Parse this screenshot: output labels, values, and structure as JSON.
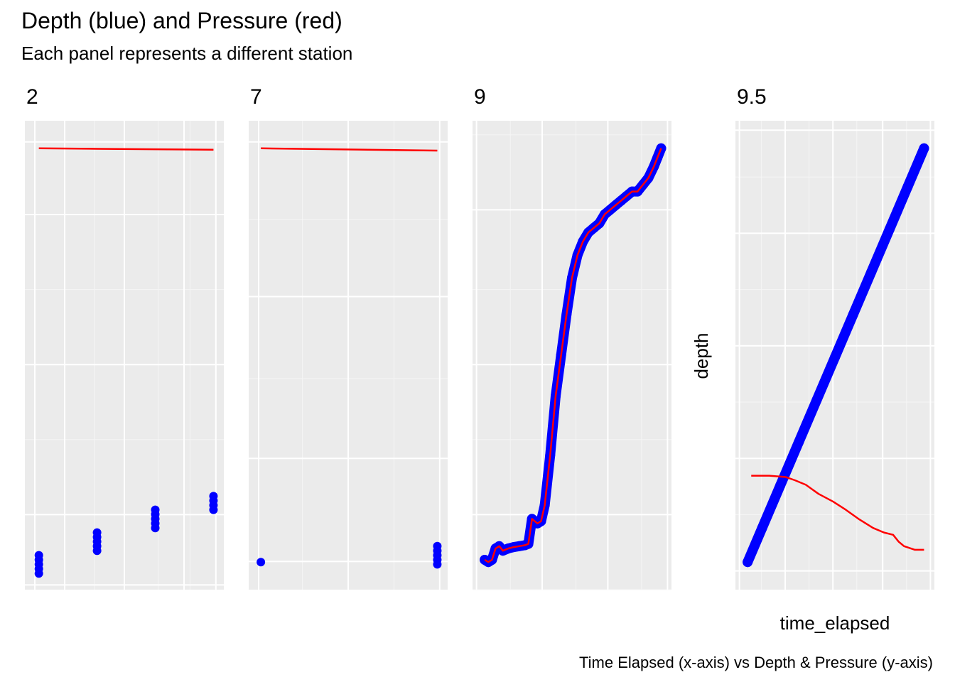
{
  "chart_data": {
    "type": "line",
    "title": "Depth (blue) and Pressure (red)",
    "subtitle": "Each panel represents a different station",
    "caption": "Time Elapsed (x-axis) vs Depth & Pressure (y-axis)",
    "xlabel": "time_elapsed",
    "ylabel": "depth",
    "grid": true,
    "facet_scales": "free",
    "colors": {
      "depth": "#0000ff",
      "pressure": "#ff0000",
      "panel_bg": "#ebebeb",
      "grid": "#ffffff"
    },
    "series": [
      {
        "name": "depth",
        "style": "points"
      },
      {
        "name": "pressure",
        "style": "line"
      }
    ],
    "panels": [
      {
        "label": "2",
        "xlim": [
          0,
          1
        ],
        "ylim": [
          0,
          1
        ],
        "depth": [
          [
            0.03,
            0.02
          ],
          [
            0.03,
            0.03
          ],
          [
            0.03,
            0.04
          ],
          [
            0.03,
            0.05
          ],
          [
            0.03,
            0.06
          ],
          [
            0.35,
            0.07
          ],
          [
            0.35,
            0.08
          ],
          [
            0.35,
            0.09
          ],
          [
            0.35,
            0.1
          ],
          [
            0.35,
            0.11
          ],
          [
            0.67,
            0.12
          ],
          [
            0.67,
            0.13
          ],
          [
            0.67,
            0.14
          ],
          [
            0.67,
            0.15
          ],
          [
            0.67,
            0.16
          ],
          [
            0.99,
            0.16
          ],
          [
            0.99,
            0.17
          ],
          [
            0.99,
            0.18
          ],
          [
            0.99,
            0.19
          ]
        ],
        "pressure": [
          [
            0.03,
            0.955
          ],
          [
            0.35,
            0.954
          ],
          [
            0.67,
            0.953
          ],
          [
            0.99,
            0.952
          ]
        ]
      },
      {
        "label": "7",
        "xlim": [
          0,
          1
        ],
        "ylim": [
          0,
          1
        ],
        "depth": [
          [
            0.02,
            0.045
          ],
          [
            0.99,
            0.04
          ],
          [
            0.99,
            0.05
          ],
          [
            0.99,
            0.06
          ],
          [
            0.99,
            0.07
          ],
          [
            0.99,
            0.08
          ]
        ],
        "pressure": [
          [
            0.02,
            0.955
          ],
          [
            0.99,
            0.95
          ]
        ]
      },
      {
        "label": "9",
        "xlim": [
          0,
          1
        ],
        "ylim": [
          0,
          1
        ],
        "depth": [
          [
            0.02,
            0.05
          ],
          [
            0.04,
            0.045
          ],
          [
            0.06,
            0.05
          ],
          [
            0.08,
            0.075
          ],
          [
            0.1,
            0.08
          ],
          [
            0.12,
            0.07
          ],
          [
            0.15,
            0.075
          ],
          [
            0.18,
            0.078
          ],
          [
            0.21,
            0.08
          ],
          [
            0.24,
            0.082
          ],
          [
            0.26,
            0.085
          ],
          [
            0.28,
            0.14
          ],
          [
            0.31,
            0.13
          ],
          [
            0.33,
            0.135
          ],
          [
            0.35,
            0.17
          ],
          [
            0.38,
            0.28
          ],
          [
            0.41,
            0.41
          ],
          [
            0.44,
            0.5
          ],
          [
            0.47,
            0.59
          ],
          [
            0.5,
            0.67
          ],
          [
            0.53,
            0.72
          ],
          [
            0.56,
            0.75
          ],
          [
            0.59,
            0.77
          ],
          [
            0.62,
            0.78
          ],
          [
            0.65,
            0.79
          ],
          [
            0.68,
            0.81
          ],
          [
            0.71,
            0.82
          ],
          [
            0.74,
            0.83
          ],
          [
            0.77,
            0.84
          ],
          [
            0.8,
            0.85
          ],
          [
            0.83,
            0.86
          ],
          [
            0.86,
            0.86
          ],
          [
            0.89,
            0.875
          ],
          [
            0.92,
            0.89
          ],
          [
            0.95,
            0.915
          ],
          [
            0.97,
            0.935
          ],
          [
            0.99,
            0.955
          ]
        ],
        "pressure": [
          [
            0.02,
            0.05
          ],
          [
            0.04,
            0.045
          ],
          [
            0.06,
            0.05
          ],
          [
            0.08,
            0.075
          ],
          [
            0.1,
            0.08
          ],
          [
            0.12,
            0.07
          ],
          [
            0.15,
            0.075
          ],
          [
            0.18,
            0.078
          ],
          [
            0.21,
            0.08
          ],
          [
            0.24,
            0.082
          ],
          [
            0.26,
            0.085
          ],
          [
            0.28,
            0.14
          ],
          [
            0.31,
            0.13
          ],
          [
            0.33,
            0.135
          ],
          [
            0.35,
            0.17
          ],
          [
            0.38,
            0.28
          ],
          [
            0.41,
            0.41
          ],
          [
            0.44,
            0.5
          ],
          [
            0.47,
            0.59
          ],
          [
            0.5,
            0.67
          ],
          [
            0.53,
            0.72
          ],
          [
            0.56,
            0.75
          ],
          [
            0.59,
            0.77
          ],
          [
            0.62,
            0.78
          ],
          [
            0.65,
            0.79
          ],
          [
            0.68,
            0.81
          ],
          [
            0.71,
            0.82
          ],
          [
            0.74,
            0.83
          ],
          [
            0.77,
            0.84
          ],
          [
            0.8,
            0.85
          ],
          [
            0.83,
            0.86
          ],
          [
            0.86,
            0.86
          ],
          [
            0.89,
            0.875
          ],
          [
            0.92,
            0.89
          ],
          [
            0.95,
            0.915
          ],
          [
            0.97,
            0.935
          ],
          [
            0.99,
            0.955
          ]
        ]
      },
      {
        "label": "9.5",
        "xlim": [
          0,
          1
        ],
        "ylim": [
          0,
          1
        ],
        "depth": [
          [
            0.02,
            0.045
          ],
          [
            0.1,
            0.115
          ],
          [
            0.2,
            0.2
          ],
          [
            0.3,
            0.285
          ],
          [
            0.4,
            0.37
          ],
          [
            0.5,
            0.455
          ],
          [
            0.6,
            0.54
          ],
          [
            0.7,
            0.625
          ],
          [
            0.8,
            0.71
          ],
          [
            0.9,
            0.795
          ],
          [
            0.99,
            0.955
          ]
        ],
        "pressure": [
          [
            0.04,
            0.235
          ],
          [
            0.14,
            0.235
          ],
          [
            0.23,
            0.232
          ],
          [
            0.28,
            0.225
          ],
          [
            0.34,
            0.215
          ],
          [
            0.41,
            0.195
          ],
          [
            0.49,
            0.178
          ],
          [
            0.56,
            0.16
          ],
          [
            0.63,
            0.14
          ],
          [
            0.71,
            0.12
          ],
          [
            0.77,
            0.11
          ],
          [
            0.82,
            0.105
          ],
          [
            0.85,
            0.09
          ],
          [
            0.88,
            0.08
          ],
          [
            0.94,
            0.072
          ],
          [
            0.99,
            0.072
          ]
        ]
      }
    ]
  }
}
